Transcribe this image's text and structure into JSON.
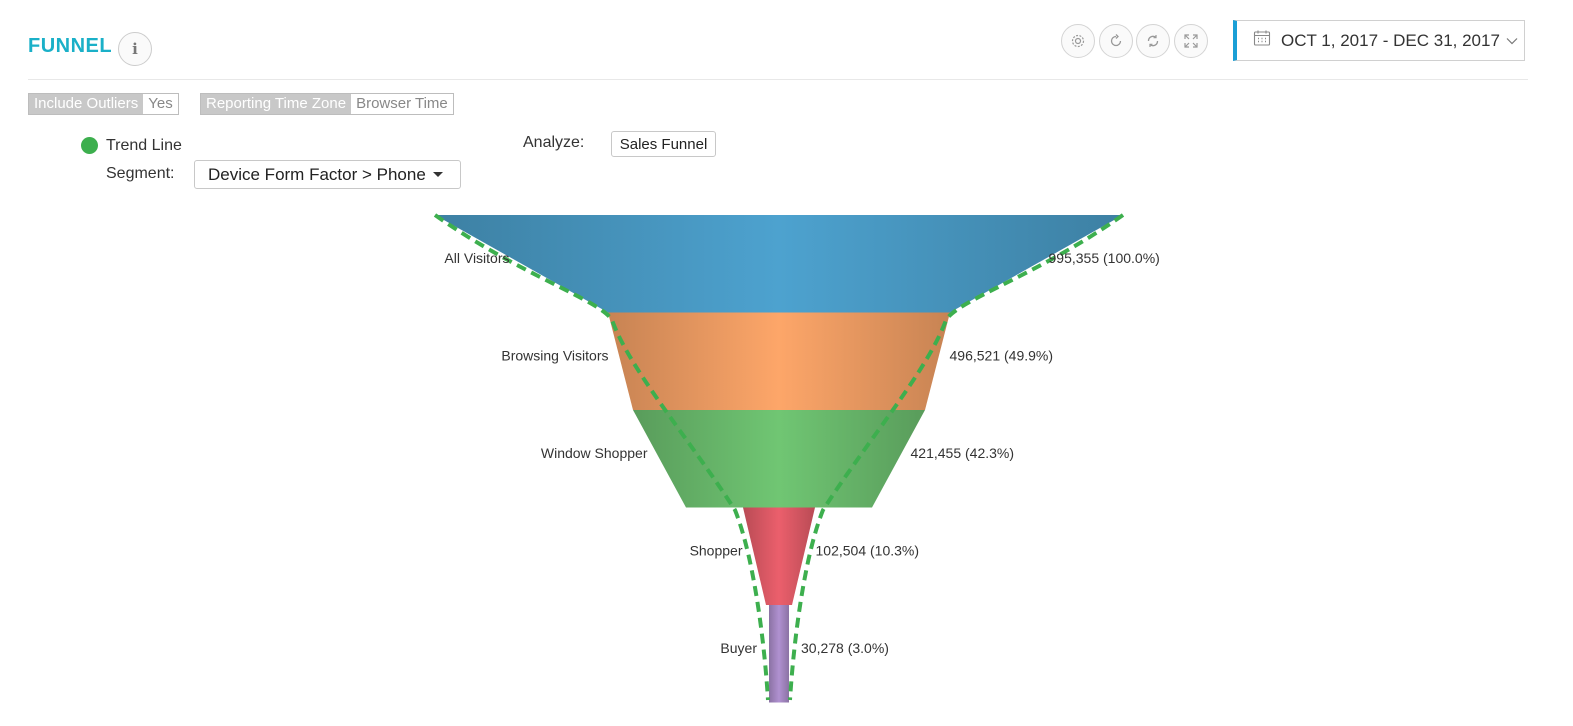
{
  "header": {
    "title": "FUNNEL",
    "info_icon": "info-icon",
    "tools": [
      "gear-icon",
      "refresh-icon",
      "sync-icon",
      "fullscreen-icon"
    ],
    "date_range": "OCT 1, 2017 - DEC 31, 2017"
  },
  "filters": [
    {
      "key": "Include Outliers",
      "value": "Yes"
    },
    {
      "key": "Reporting Time Zone",
      "value": "Browser Time"
    }
  ],
  "legend": {
    "label": "Trend Line",
    "color": "#3daf4e"
  },
  "segment": {
    "label": "Segment:",
    "value": "Device Form Factor > Phone"
  },
  "analyze": {
    "label": "Analyze:",
    "value": "Sales Funnel"
  },
  "chart_data": {
    "type": "funnel",
    "stages": [
      {
        "name": "All Visitors",
        "value": 995355,
        "label": "995,355 (100.0%)",
        "color": "#4a9cc7"
      },
      {
        "name": "Browsing Visitors",
        "value": 496521,
        "label": "496,521 (49.9%)",
        "color": "#f3a065"
      },
      {
        "name": "Window Shopper",
        "value": 421455,
        "label": "421,455 (42.3%)",
        "color": "#6cbe6f"
      },
      {
        "name": "Shopper",
        "value": 102504,
        "label": "102,504 (10.3%)",
        "color": "#e25b68"
      },
      {
        "name": "Buyer",
        "value": 30278,
        "label": "30,278 (3.0%)",
        "color": "#a98bc8"
      }
    ],
    "trend_line": {
      "color": "#3daf4e",
      "style": "dashed"
    }
  }
}
